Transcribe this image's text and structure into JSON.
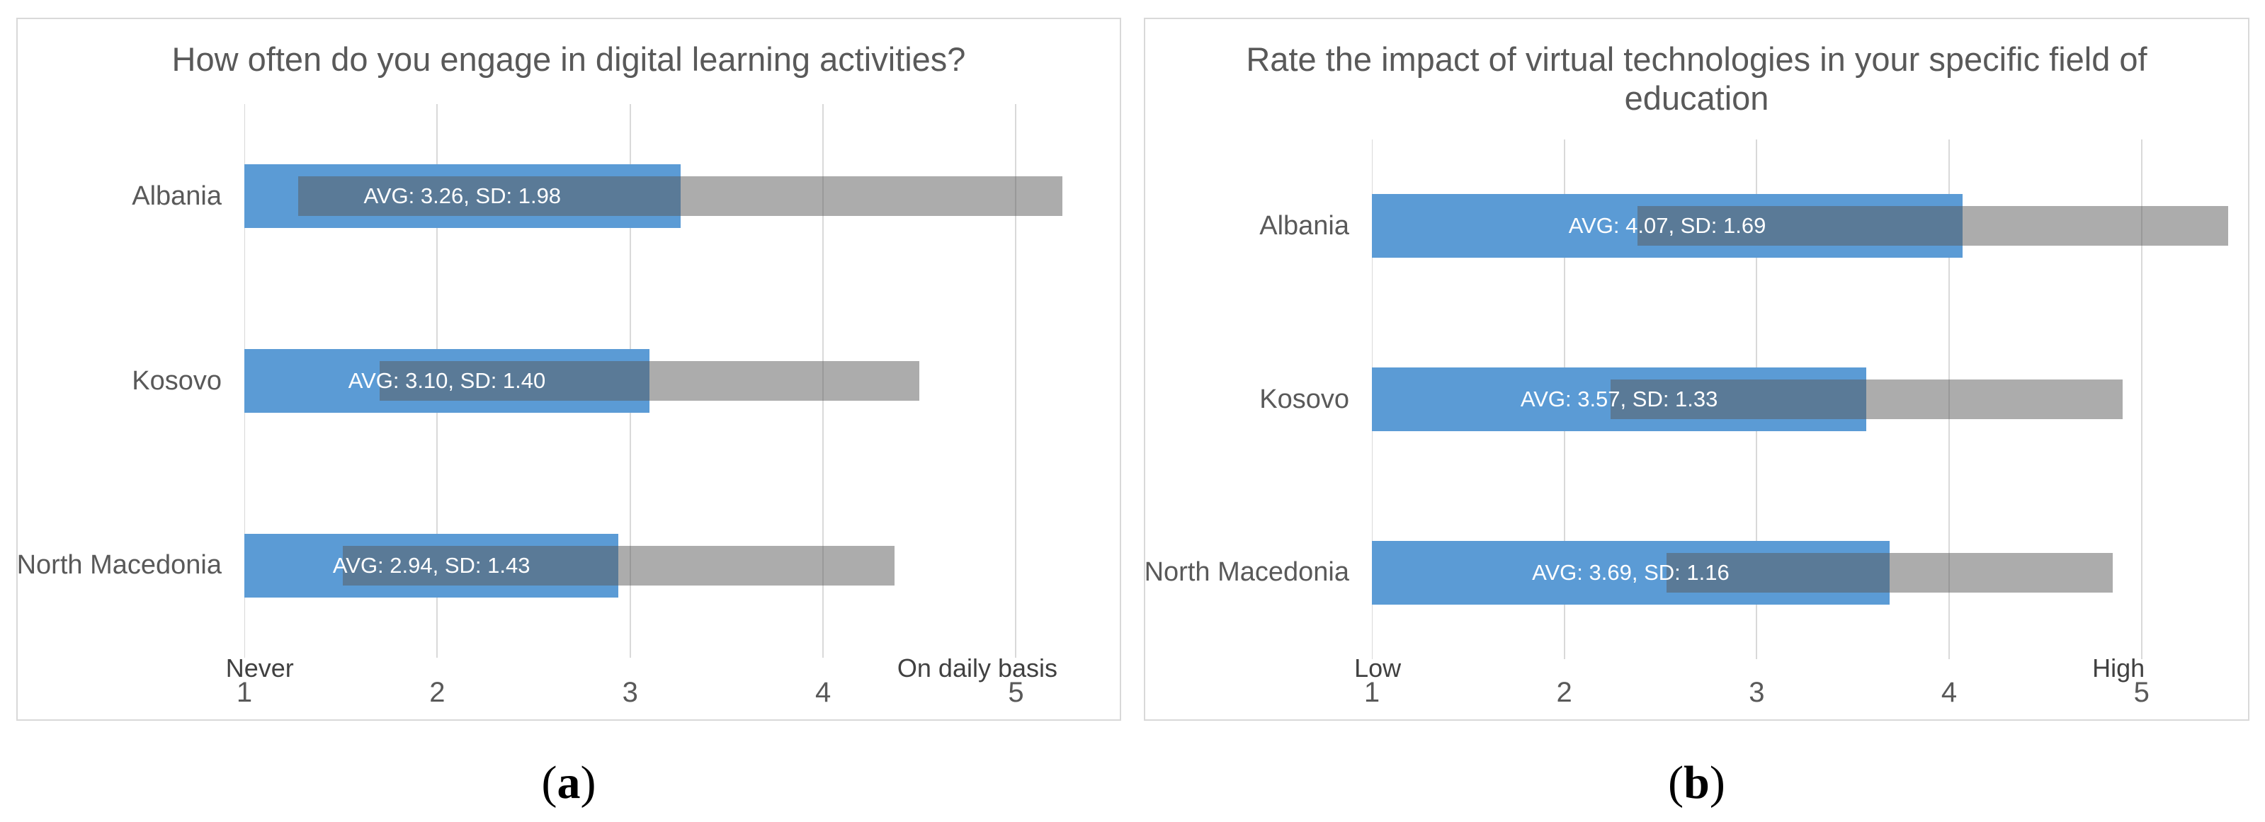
{
  "figure": {
    "captions": [
      {
        "open": "(",
        "letter": "a",
        "close": ")"
      },
      {
        "open": "(",
        "letter": "b",
        "close": ")"
      }
    ]
  },
  "colors": {
    "bar_blue": "#5B9BD5",
    "sd_overlay": "rgba(89,89,89,0.5)",
    "sd_on_white": "#ACACAC",
    "sd_on_blue_overlap": "#5A7A97",
    "gridline": "#D9D9D9",
    "panel_border": "#D9D9D9",
    "title_text": "#595959",
    "category_text": "#595959",
    "tick_text": "#595959",
    "endpoint_text": "#404040",
    "bar_label_text": "#FFFFFF",
    "caption_text": "#000000"
  },
  "chart_data": [
    {
      "type": "bar",
      "orientation": "horizontal",
      "panel": "a",
      "title": "How often do you engage in digital learning activities?",
      "title_lines": [
        "How often do you engage in digital learning activities?"
      ],
      "categories": [
        "Albania",
        "Kosovo",
        "North Macedonia"
      ],
      "series": [
        {
          "name": "AVG",
          "values": [
            3.26,
            3.1,
            2.94
          ]
        },
        {
          "name": "SD",
          "values": [
            1.98,
            1.4,
            1.43
          ]
        }
      ],
      "bar_labels": [
        "AVG: 3.26, SD: 1.98",
        "AVG: 3.10, SD: 1.40",
        "AVG: 2.94, SD: 1.43"
      ],
      "sd_band_note": "gray band spans AVG-SD to AVG+SD",
      "xlim": [
        1,
        5.45
      ],
      "xticks": [
        1,
        2,
        3,
        4,
        5
      ],
      "gridlines": true,
      "legend": "none",
      "axis_endpoint_labels": [
        {
          "text": "Never",
          "x": 1.08
        },
        {
          "text": "On daily basis",
          "x": 4.8
        }
      ]
    },
    {
      "type": "bar",
      "orientation": "horizontal",
      "panel": "b",
      "title": "Rate the impact of virtual technologies in your specific field of education",
      "title_lines": [
        "Rate the impact of virtual technologies in your specific field of",
        "education"
      ],
      "categories": [
        "Albania",
        "Kosovo",
        "North Macedonia"
      ],
      "series": [
        {
          "name": "AVG",
          "values": [
            4.07,
            3.57,
            3.69
          ]
        },
        {
          "name": "SD",
          "values": [
            1.69,
            1.33,
            1.16
          ]
        }
      ],
      "bar_labels": [
        "AVG: 4.07, SD: 1.69",
        "AVG: 3.57, SD: 1.33",
        "AVG: 3.69, SD: 1.16"
      ],
      "sd_band_note": "gray band spans AVG-SD to AVG+SD, clipped at plot edge",
      "xlim": [
        1,
        5.45
      ],
      "xticks": [
        1,
        2,
        3,
        4,
        5
      ],
      "gridlines": true,
      "legend": "none",
      "axis_endpoint_labels": [
        {
          "text": "Low",
          "x": 1.03
        },
        {
          "text": "High",
          "x": 4.88
        }
      ]
    }
  ]
}
